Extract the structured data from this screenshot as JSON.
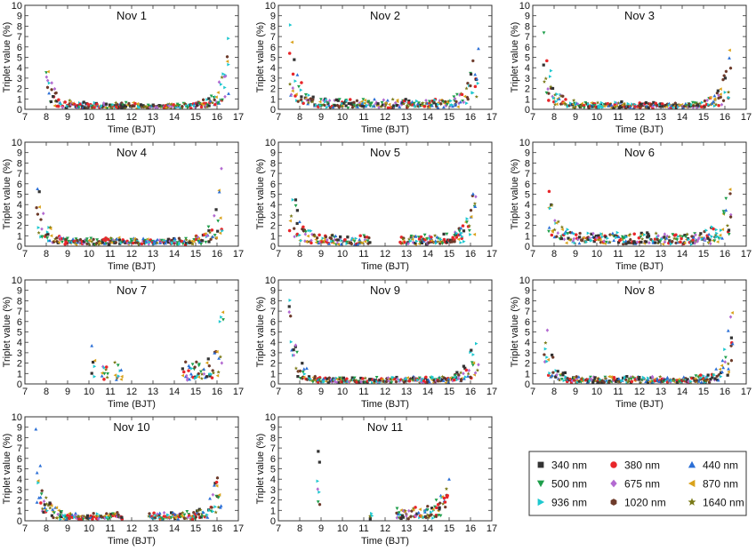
{
  "chart_data": {
    "type": "scatter",
    "xlabel": "Time (BJT)",
    "ylabel": "Triplet value (%)",
    "xlim": [
      7,
      17
    ],
    "ylim": [
      0,
      10
    ],
    "xticks": [
      7,
      8,
      9,
      10,
      11,
      12,
      13,
      14,
      15,
      16,
      17
    ],
    "yticks": [
      0,
      1,
      2,
      3,
      4,
      5,
      6,
      7,
      8,
      9,
      10
    ],
    "grid": false,
    "legend_placement": "bottom-right",
    "legend": [
      {
        "name": "340 nm",
        "color": "#333333",
        "marker": "square"
      },
      {
        "name": "380 nm",
        "color": "#e8262a",
        "marker": "circle"
      },
      {
        "name": "440 nm",
        "color": "#2b6fd6",
        "marker": "triangle-up"
      },
      {
        "name": "500 nm",
        "color": "#1e9e4a",
        "marker": "triangle-down"
      },
      {
        "name": "675 nm",
        "color": "#b36ad1",
        "marker": "diamond"
      },
      {
        "name": "870 nm",
        "color": "#d9a21b",
        "marker": "triangle-left"
      },
      {
        "name": "936 nm",
        "color": "#1ec8cf",
        "marker": "triangle-right"
      },
      {
        "name": "1020 nm",
        "color": "#6e3b2b",
        "marker": "hexagon"
      },
      {
        "name": "1640 nm",
        "color": "#7a7a18",
        "marker": "star"
      }
    ],
    "panels": [
      {
        "title": "Nov 1",
        "segments": [
          [
            8.0,
            16.6
          ]
        ],
        "edge": [
          5.0,
          9.8
        ],
        "base": 0.45
      },
      {
        "title": "Nov 2",
        "segments": [
          [
            7.5,
            16.4
          ]
        ],
        "edge": [
          9.5,
          9.6
        ],
        "base": 0.8
      },
      {
        "title": "Nov 3",
        "segments": [
          [
            7.5,
            16.3
          ]
        ],
        "edge": [
          9.5,
          8.5
        ],
        "base": 0.5
      },
      {
        "title": "Nov 4",
        "segments": [
          [
            7.5,
            16.3
          ]
        ],
        "edge": [
          9.6,
          9.7
        ],
        "base": 0.6
      },
      {
        "title": "Nov 5",
        "segments": [
          [
            7.5,
            11.3
          ],
          [
            12.7,
            16.3
          ]
        ],
        "edge": [
          9.5,
          9.1
        ],
        "base": 0.9
      },
      {
        "title": "Nov 6",
        "segments": [
          [
            7.7,
            16.3
          ]
        ],
        "edge": [
          7.0,
          9.2
        ],
        "base": 1.1
      },
      {
        "title": "Nov 7",
        "segments": [
          [
            10.1,
            10.3
          ],
          [
            10.6,
            10.9
          ],
          [
            11.2,
            11.6
          ],
          [
            14.4,
            16.3
          ]
        ],
        "edge": [
          3.8,
          8.5
        ],
        "base": 2.0
      },
      {
        "title": "Nov 9",
        "segments": [
          [
            7.5,
            16.4
          ]
        ],
        "edge": [
          9.7,
          9.0
        ],
        "base": 0.5
      },
      {
        "title": "Nov 8",
        "segments": [
          [
            7.5,
            16.4
          ]
        ],
        "edge": [
          8.7,
          9.8
        ],
        "base": 0.5
      },
      {
        "title": "Nov 10",
        "segments": [
          [
            7.5,
            11.6
          ],
          [
            12.8,
            16.2
          ]
        ],
        "edge": [
          9.5,
          9.0
        ],
        "base": 0.6
      },
      {
        "title": "Nov 11",
        "segments": [
          [
            8.8,
            8.95
          ],
          [
            11.3,
            11.4
          ],
          [
            12.5,
            15.0
          ]
        ],
        "edge": [
          7.8,
          6.0
        ],
        "base": 1.0
      }
    ]
  }
}
